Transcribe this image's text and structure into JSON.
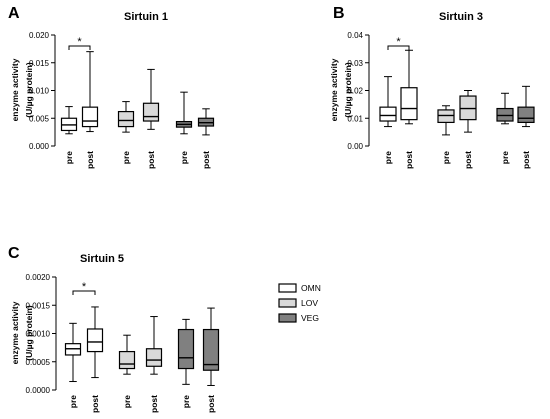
{
  "legend": [
    {
      "label": "OMN",
      "color": "#ffffff"
    },
    {
      "label": "LOV",
      "color": "#d9d9d9"
    },
    {
      "label": "VEG",
      "color": "#808080"
    }
  ],
  "chart_data": [
    {
      "panel": "A",
      "type": "boxplot",
      "title": "Sirtuin 1",
      "ylabel": [
        "enzyme activity",
        "(U/µg protein)"
      ],
      "ylim": [
        0,
        0.02
      ],
      "yticks": [
        "0.000",
        "0.005",
        "0.010",
        "0.015",
        "0.020"
      ],
      "groups": [
        "OMN",
        "LOV",
        "VEG"
      ],
      "categories": [
        "pre",
        "post"
      ],
      "significance": [
        {
          "group": "OMN",
          "label": "*"
        }
      ],
      "boxes": [
        {
          "group": "OMN",
          "time": "pre",
          "min": 0.0022,
          "q1": 0.0028,
          "median": 0.0038,
          "q3": 0.005,
          "max": 0.0071
        },
        {
          "group": "OMN",
          "time": "post",
          "min": 0.0026,
          "q1": 0.0035,
          "median": 0.0045,
          "q3": 0.007,
          "max": 0.017
        },
        {
          "group": "LOV",
          "time": "pre",
          "min": 0.0025,
          "q1": 0.0035,
          "median": 0.0046,
          "q3": 0.0062,
          "max": 0.008
        },
        {
          "group": "LOV",
          "time": "post",
          "min": 0.003,
          "q1": 0.0045,
          "median": 0.0053,
          "q3": 0.0077,
          "max": 0.0138
        },
        {
          "group": "VEG",
          "time": "pre",
          "min": 0.0022,
          "q1": 0.0034,
          "median": 0.0039,
          "q3": 0.0044,
          "max": 0.0097
        },
        {
          "group": "VEG",
          "time": "post",
          "min": 0.002,
          "q1": 0.0036,
          "median": 0.0042,
          "q3": 0.005,
          "max": 0.0067
        }
      ]
    },
    {
      "panel": "B",
      "type": "boxplot",
      "title": "Sirtuin 3",
      "ylabel": [
        "enzyme activity",
        "(U/µg protein)"
      ],
      "ylim": [
        0,
        0.04
      ],
      "yticks": [
        "0.00",
        "0.01",
        "0.02",
        "0.03",
        "0.04"
      ],
      "groups": [
        "OMN",
        "LOV",
        "VEG"
      ],
      "categories": [
        "pre",
        "post"
      ],
      "significance": [
        {
          "group": "OMN",
          "label": "*"
        }
      ],
      "boxes": [
        {
          "group": "OMN",
          "time": "pre",
          "min": 0.007,
          "q1": 0.009,
          "median": 0.011,
          "q3": 0.014,
          "max": 0.025
        },
        {
          "group": "OMN",
          "time": "post",
          "min": 0.008,
          "q1": 0.0095,
          "median": 0.0135,
          "q3": 0.021,
          "max": 0.0345
        },
        {
          "group": "LOV",
          "time": "pre",
          "min": 0.004,
          "q1": 0.0085,
          "median": 0.011,
          "q3": 0.013,
          "max": 0.0145
        },
        {
          "group": "LOV",
          "time": "post",
          "min": 0.005,
          "q1": 0.0095,
          "median": 0.0135,
          "q3": 0.018,
          "max": 0.02
        },
        {
          "group": "VEG",
          "time": "pre",
          "min": 0.008,
          "q1": 0.009,
          "median": 0.011,
          "q3": 0.0135,
          "max": 0.019
        },
        {
          "group": "VEG",
          "time": "post",
          "min": 0.007,
          "q1": 0.0085,
          "median": 0.01,
          "q3": 0.014,
          "max": 0.0215
        }
      ]
    },
    {
      "panel": "C",
      "type": "boxplot",
      "title": "Sirtuin 5",
      "ylabel": [
        "enzyme activity",
        "(U/µg protein)"
      ],
      "ylim": [
        0,
        0.002
      ],
      "yticks": [
        "0.0000",
        "0.0005",
        "0.0010",
        "0.0015",
        "0.0020"
      ],
      "groups": [
        "OMN",
        "LOV",
        "VEG"
      ],
      "categories": [
        "pre",
        "post"
      ],
      "significance": [
        {
          "group": "OMN",
          "label": "*"
        }
      ],
      "boxes": [
        {
          "group": "OMN",
          "time": "pre",
          "min": 0.00015,
          "q1": 0.00062,
          "median": 0.00073,
          "q3": 0.00082,
          "max": 0.00118
        },
        {
          "group": "OMN",
          "time": "post",
          "min": 0.00022,
          "q1": 0.00068,
          "median": 0.00085,
          "q3": 0.00108,
          "max": 0.00147
        },
        {
          "group": "LOV",
          "time": "pre",
          "min": 0.00028,
          "q1": 0.00038,
          "median": 0.00046,
          "q3": 0.00068,
          "max": 0.00097
        },
        {
          "group": "LOV",
          "time": "post",
          "min": 0.00028,
          "q1": 0.00042,
          "median": 0.00053,
          "q3": 0.00073,
          "max": 0.0013
        },
        {
          "group": "VEG",
          "time": "pre",
          "min": 0.0001,
          "q1": 0.00038,
          "median": 0.00057,
          "q3": 0.00107,
          "max": 0.00125
        },
        {
          "group": "VEG",
          "time": "post",
          "min": 8e-05,
          "q1": 0.00035,
          "median": 0.00045,
          "q3": 0.00107,
          "max": 0.00145
        }
      ]
    }
  ]
}
